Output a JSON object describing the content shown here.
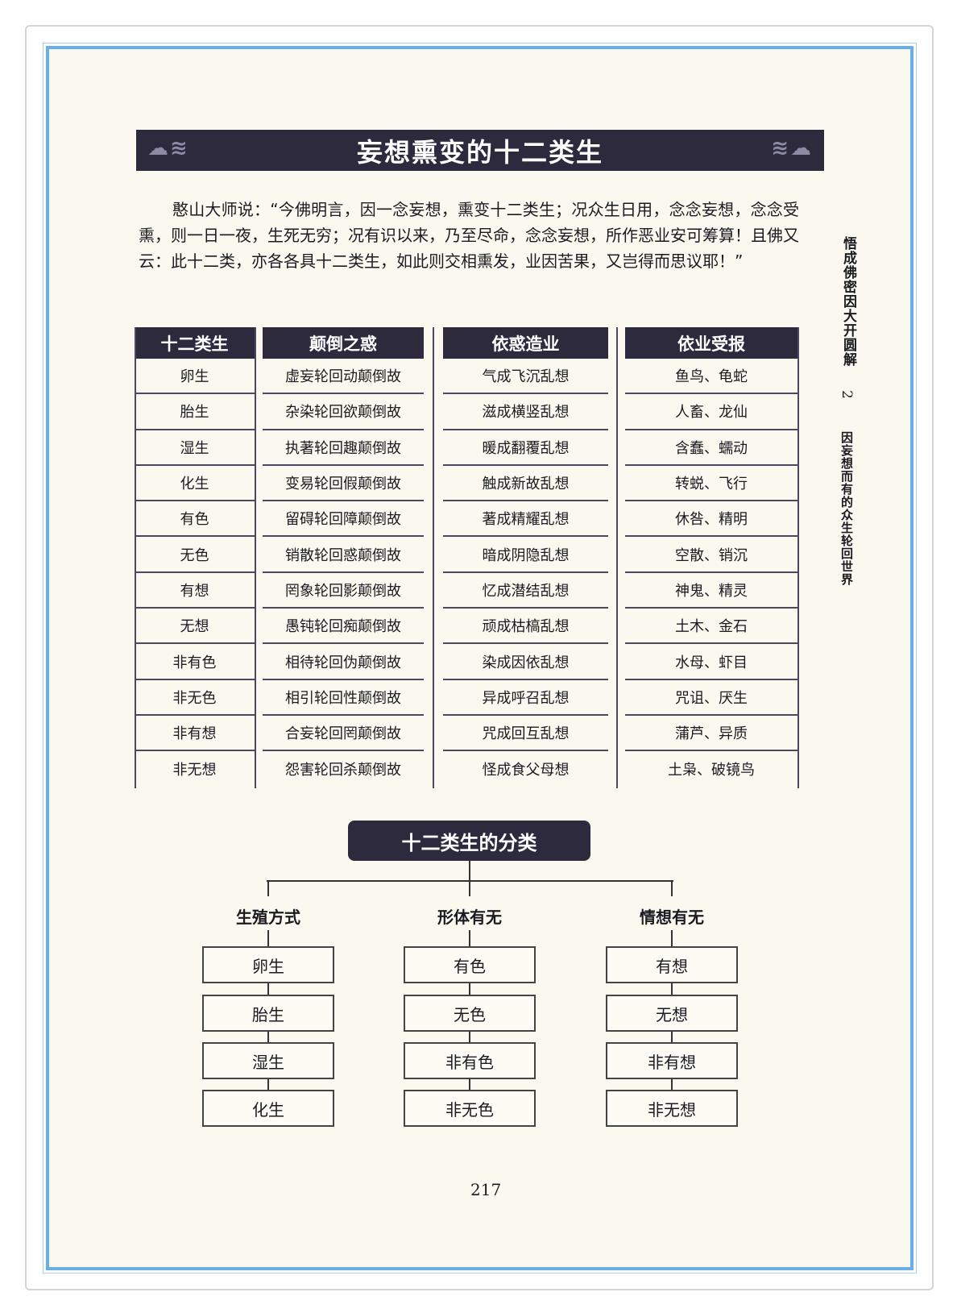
{
  "title": "妄想熏变的十二类生",
  "paragraph": "憨山大师说：“今佛明言，因一念妄想，熏变十二类生；况众生日用，念念妄想，念念受熏，则一日一夜，生死无穷；况有识以来，乃至尽命，念念妄想，所作恶业安可筹算！且佛又云：此十二类，亦各各具十二类生，如此则交相熏发，业因苦果，又岂得而思议耶！”",
  "table": {
    "headers": [
      "十二类生",
      "颠倒之惑",
      "依惑造业",
      "依业受报"
    ],
    "columns": [
      [
        "卵生",
        "胎生",
        "湿生",
        "化生",
        "有色",
        "无色",
        "有想",
        "无想",
        "非有色",
        "非无色",
        "非有想",
        "非无想"
      ],
      [
        "虚妄轮回动颠倒故",
        "杂染轮回欲颠倒故",
        "执著轮回趣颠倒故",
        "变易轮回假颠倒故",
        "留碍轮回障颠倒故",
        "销散轮回惑颠倒故",
        "罔象轮回影颠倒故",
        "愚钝轮回痴颠倒故",
        "相待轮回伪颠倒故",
        "相引轮回性颠倒故",
        "合妄轮回罔颠倒故",
        "怨害轮回杀颠倒故"
      ],
      [
        "气成飞沉乱想",
        "滋成横竖乱想",
        "暖成翻覆乱想",
        "触成新故乱想",
        "著成精耀乱想",
        "暗成阴隐乱想",
        "忆成潜结乱想",
        "顽成枯槁乱想",
        "染成因依乱想",
        "异成呼召乱想",
        "咒成回互乱想",
        "怪成食父母想"
      ],
      [
        "鱼鸟、龟蛇",
        "人畜、龙仙",
        "含蠢、蠕动",
        "转蜕、飞行",
        "休咎、精明",
        "空散、销沉",
        "神鬼、精灵",
        "土木、金石",
        "水母、虾目",
        "咒诅、厌生",
        "蒲芦、异质",
        "土枭、破镜鸟"
      ]
    ]
  },
  "side": {
    "book_title": "悟成佛密因大开圆解",
    "chapter_no": "2",
    "chapter_title": "因妄想而有的众生轮回世界"
  },
  "classification": {
    "title": "十二类生的分类",
    "groups": [
      {
        "label": "生殖方式",
        "items": [
          "卵生",
          "胎生",
          "湿生",
          "化生"
        ]
      },
      {
        "label": "形体有无",
        "items": [
          "有色",
          "无色",
          "非有色",
          "非无色"
        ]
      },
      {
        "label": "情想有无",
        "items": [
          "有想",
          "无想",
          "非有想",
          "非无想"
        ]
      }
    ]
  },
  "page_number": "217",
  "colors": {
    "frame": "#6aaee8",
    "banner": "#2d2a3e",
    "paper": "#fbf9ef"
  }
}
